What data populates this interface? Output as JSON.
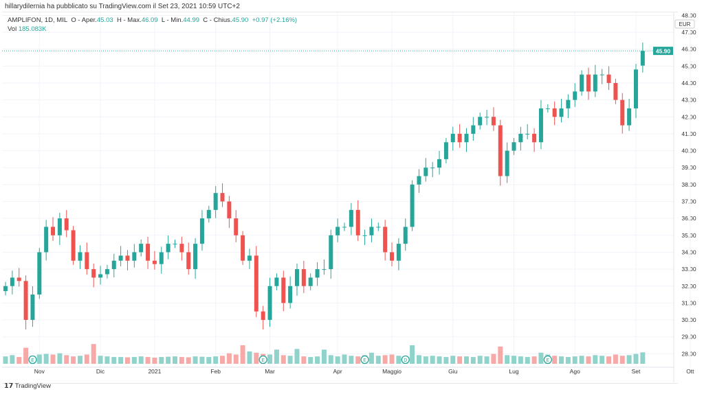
{
  "published": "hillarydilernia ha pubblicato su TradingView.com il Set 23, 2021 10:59 UTC+2",
  "legend": {
    "symbol": "AMPLIFON, 1D, MIL",
    "o_label": "O - Aper.",
    "o": "45.03",
    "h_label": "H - Max.",
    "h": "46.09",
    "l_label": "L - Min.",
    "l": "44.99",
    "c_label": "C - Chius.",
    "c": "45.90",
    "change": "+0.97 (+2.16%)",
    "vol_label": "Vol",
    "vol": "185.083K"
  },
  "logo": "TradingView",
  "colors": {
    "up": "#26a69a",
    "down": "#ef5350",
    "vol_up": "#8fd3cb",
    "vol_down": "#f7a9a7"
  },
  "chart_data": {
    "type": "candlestick",
    "currency": "EUR",
    "last_price": "45.90",
    "ylim": [
      27.2,
      48
    ],
    "y_ticks": [
      "48.00",
      "47.00",
      "46.00",
      "45.00",
      "44.00",
      "43.00",
      "42.00",
      "41.00",
      "40.00",
      "39.00",
      "38.00",
      "37.00",
      "36.00",
      "35.00",
      "34.00",
      "33.00",
      "32.00",
      "31.00",
      "30.00",
      "29.00",
      "28.00"
    ],
    "x_ticks": [
      {
        "label": "Nov",
        "i": 5
      },
      {
        "label": "Dic",
        "i": 14
      },
      {
        "label": "2021",
        "i": 22
      },
      {
        "label": "Feb",
        "i": 31
      },
      {
        "label": "Mar",
        "i": 39
      },
      {
        "label": "Apr",
        "i": 49
      },
      {
        "label": "Maggio",
        "i": 57
      },
      {
        "label": "Giu",
        "i": 66
      },
      {
        "label": "Lug",
        "i": 75
      },
      {
        "label": "Ago",
        "i": 84
      },
      {
        "label": "Set",
        "i": 93
      },
      {
        "label": "Ott",
        "i": 101
      }
    ],
    "close": [
      32.0,
      32.5,
      32.3,
      30.0,
      31.5,
      34.0,
      35.5,
      35.0,
      36.0,
      35.3,
      33.5,
      34.0,
      33.0,
      32.5,
      32.7,
      33.0,
      33.5,
      33.8,
      33.5,
      34.0,
      34.5,
      33.5,
      33.3,
      34.0,
      34.5,
      34.5,
      34.0,
      33.0,
      34.5,
      36.0,
      36.5,
      37.5,
      37.0,
      36.0,
      35.0,
      33.5,
      33.8,
      30.5,
      30.0,
      32.0,
      32.5,
      31.0,
      32.0,
      33.0,
      32.0,
      32.5,
      33.0,
      33.0,
      35.0,
      35.5,
      35.5,
      36.5,
      35.0,
      35.0,
      35.5,
      35.5,
      34.0,
      33.5,
      34.5,
      35.5,
      38.0,
      38.5,
      39.0,
      39.0,
      39.5,
      40.5,
      41.0,
      40.5,
      41.0,
      41.5,
      42.0,
      42.0,
      41.5,
      38.5,
      40.0,
      40.5,
      41.0,
      41.0,
      40.5,
      42.5,
      42.5,
      42.0,
      42.5,
      43.0,
      43.5,
      44.5,
      43.5,
      44.5,
      44.5,
      44.0,
      43.0,
      41.5,
      42.5,
      44.8,
      45.9
    ],
    "volume": [
      120,
      140,
      110,
      260,
      130,
      150,
      160,
      150,
      170,
      140,
      120,
      130,
      150,
      320,
      130,
      120,
      110,
      110,
      105,
      110,
      120,
      110,
      100,
      110,
      115,
      120,
      110,
      105,
      120,
      115,
      110,
      120,
      130,
      170,
      150,
      300,
      200,
      180,
      160,
      150,
      230,
      140,
      130,
      240,
      120,
      110,
      120,
      230,
      140,
      120,
      150,
      130,
      120,
      140,
      180,
      130,
      140,
      150,
      130,
      120,
      300,
      140,
      120,
      130,
      120,
      110,
      130,
      120,
      120,
      110,
      130,
      120,
      160,
      280,
      140,
      130,
      120,
      110,
      120,
      180,
      150,
      130,
      120,
      110,
      120,
      130,
      120,
      140,
      130,
      120,
      150,
      130,
      140,
      160,
      185
    ],
    "events": [
      {
        "label": "E",
        "i": 4
      },
      {
        "label": "E",
        "i": 38
      },
      {
        "label": "E",
        "i": 53
      },
      {
        "label": "D",
        "i": 59
      },
      {
        "label": "E",
        "i": 80
      }
    ]
  }
}
